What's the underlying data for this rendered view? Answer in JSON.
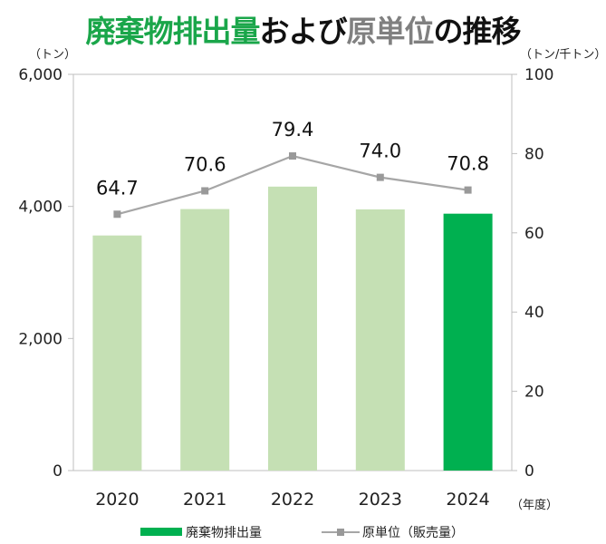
{
  "title": {
    "part1": "廃棄物排出量",
    "part2": "および",
    "part3": "原単位",
    "part4": "の推移",
    "color1": "#1aa64a",
    "color2": "#111111",
    "color3": "#808080"
  },
  "chart_data": {
    "type": "bar+line",
    "categories": [
      "2020",
      "2021",
      "2022",
      "2023",
      "2024"
    ],
    "xlabel": "（年度）",
    "y_left": {
      "unit": "（トン）",
      "range": [
        0,
        6000
      ],
      "ticks": [
        "0",
        "2,000",
        "4,000",
        "6,000"
      ]
    },
    "y_right": {
      "unit": "（トン/千トン）",
      "range": [
        0,
        100
      ],
      "ticks": [
        "0",
        "20",
        "40",
        "60",
        "80",
        "100"
      ]
    },
    "series": [
      {
        "name": "廃棄物排出量",
        "type": "bar",
        "axis": "left",
        "values": [
          3560,
          3960,
          4300,
          3955,
          3890
        ],
        "colors": [
          "#c5e0b4",
          "#c5e0b4",
          "#c5e0b4",
          "#c5e0b4",
          "#00b050"
        ]
      },
      {
        "name": "原単位（販売量）",
        "type": "line",
        "axis": "right",
        "values": [
          64.7,
          70.6,
          79.4,
          74.0,
          70.8
        ],
        "labels": [
          "64.7",
          "70.6",
          "79.4",
          "74.0",
          "70.8"
        ],
        "color": "#a6a6a6"
      }
    ],
    "grid": false,
    "legend": "bottom"
  }
}
